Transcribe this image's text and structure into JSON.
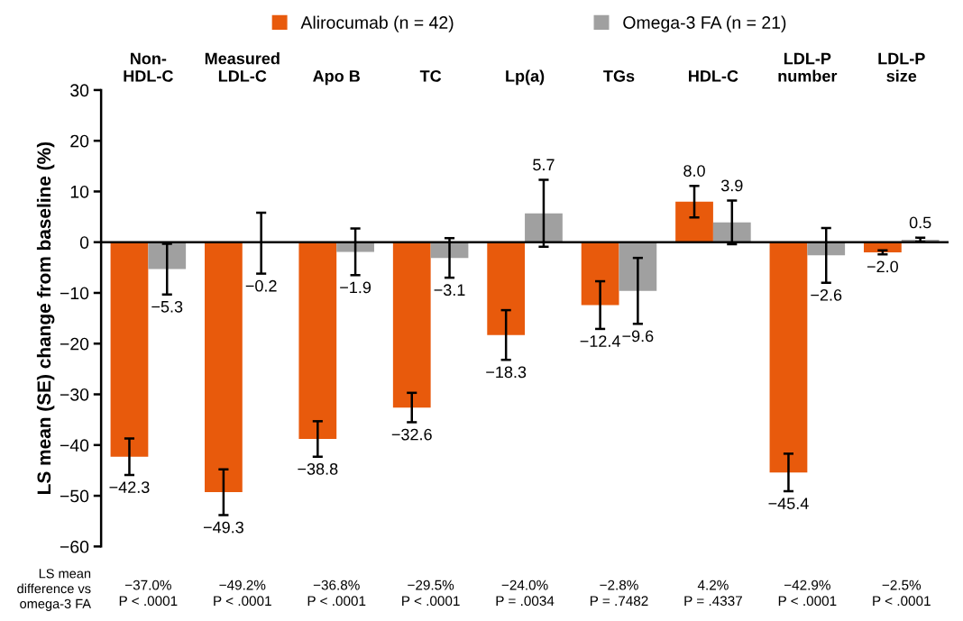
{
  "chart_data": {
    "type": "bar",
    "ylabel": "LS mean (SE) change from baseline (%)",
    "categories": [
      "Non-\nHDL-C",
      "Measured\nLDL-C",
      "Apo B",
      "TC",
      "Lp(a)",
      "TGs",
      "HDL-C",
      "LDL-P\nnumber",
      "LDL-P\nsize"
    ],
    "series": [
      {
        "name": "Alirocumab (n = 42)",
        "color": "#e85a0c",
        "values": [
          -42.3,
          -49.3,
          -38.8,
          -32.6,
          -18.3,
          -12.4,
          8.0,
          -45.4,
          -2.0
        ],
        "errors": [
          3.6,
          4.5,
          3.5,
          2.9,
          4.9,
          4.7,
          3.1,
          3.7,
          0.4
        ],
        "value_labels": [
          "−42.3",
          "−49.3",
          "−38.8",
          "−32.6",
          "−18.3",
          "−12.4",
          "8.0",
          "−45.4",
          "−2.0"
        ]
      },
      {
        "name": "Omega-3 FA (n = 21)",
        "color": "#a0a0a0",
        "values": [
          -5.3,
          -0.2,
          -1.9,
          -3.1,
          5.7,
          -9.6,
          3.9,
          -2.6,
          0.5
        ],
        "errors": [
          5.0,
          6.0,
          4.6,
          3.9,
          6.6,
          6.5,
          4.3,
          5.4,
          0.4
        ],
        "value_labels": [
          "−5.3",
          "−0.2",
          "−1.9",
          "−3.1",
          "5.7",
          "−9.6",
          "3.9",
          "−2.6",
          "0.5"
        ]
      }
    ],
    "ylim": [
      -60,
      30
    ],
    "yticks": [
      -60,
      -50,
      -40,
      -30,
      -20,
      -10,
      0,
      10,
      20,
      30
    ],
    "ref_lines": [
      {
        "axis": "y",
        "value": 0,
        "color": "#000000"
      }
    ],
    "legend": "top",
    "grid": false,
    "annotations": [
      "LS mean\ndifference vs\nomega-3 FA",
      "−37.0%\nP < .0001",
      "−49.2%\nP < .0001",
      "−36.8%\nP < .0001",
      "−29.5%\nP < .0001",
      "−24.0%\nP = .0034",
      "−2.8%\nP = .7482",
      "4.2%\nP = .4337",
      "−42.9%\nP < .0001",
      "−2.5%\nP < .0001"
    ]
  }
}
